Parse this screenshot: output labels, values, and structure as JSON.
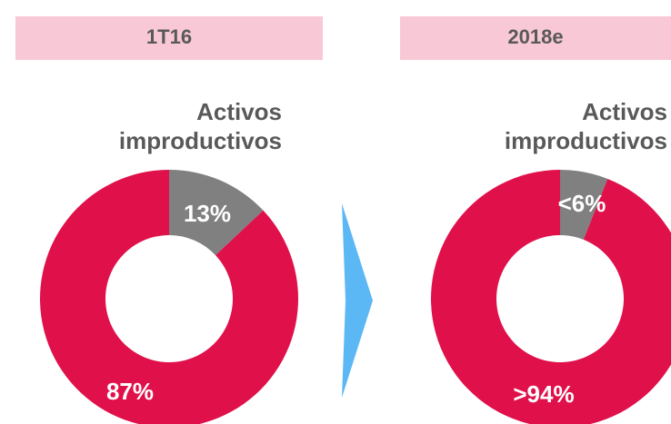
{
  "chart_data": [
    {
      "type": "pie",
      "title": "1T16",
      "annotation": [
        "Activos",
        "improductivos"
      ],
      "values": [
        13,
        87
      ],
      "value_labels": [
        "13%",
        "87%"
      ],
      "colors": [
        "#808080",
        "#e0104a"
      ],
      "donut": true
    },
    {
      "type": "pie",
      "title": "2018e",
      "annotation": [
        "Activos",
        "improductivos"
      ],
      "values": [
        6,
        94
      ],
      "value_labels": [
        "<6%",
        ">94%"
      ],
      "colors": [
        "#808080",
        "#e0104a"
      ],
      "donut": true
    }
  ]
}
